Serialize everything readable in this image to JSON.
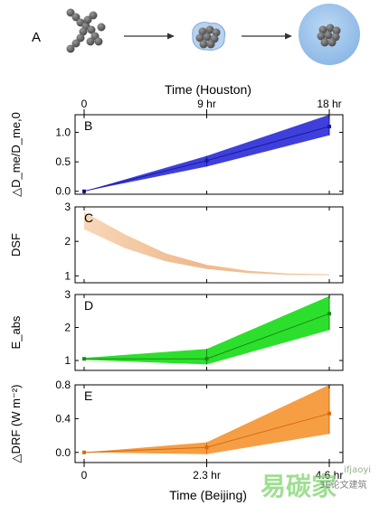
{
  "panel_a": {
    "label": "A"
  },
  "top_axis": {
    "title": "Time (Houston)",
    "ticks": [
      "0",
      "9 hr",
      "18 hr"
    ]
  },
  "bottom_axis": {
    "title": "Time (Beijing)",
    "ticks": [
      "0",
      "2.3 hr",
      "4.6 hr"
    ]
  },
  "watermark": {
    "text": "3E论文建筑",
    "brand": "易碳家",
    "brand_latin": "ifjaoyi"
  },
  "colors": {
    "blue": "#2a2ad8",
    "peach": "#f4c39a",
    "green": "#22dd22",
    "orange": "#f5942f"
  },
  "chart_data": [
    {
      "type": "area",
      "panel": "B",
      "ylabel": "△D_me/D_me,0",
      "x": [
        0,
        9,
        18
      ],
      "x_ticks": [
        "0",
        "9 hr",
        "18 hr"
      ],
      "yticks": [
        "0.0",
        "0.5",
        "1.0"
      ],
      "ylim": [
        -0.05,
        1.3
      ],
      "series": [
        {
          "values": [
            0.0,
            0.52,
            1.1
          ],
          "lower": [
            0.0,
            0.42,
            0.95
          ],
          "upper": [
            0.0,
            0.6,
            1.3
          ]
        }
      ]
    },
    {
      "type": "area",
      "panel": "C",
      "ylabel": "DSF",
      "x": [
        0,
        3,
        6,
        9,
        12,
        15,
        18
      ],
      "yticks": [
        "1",
        "2",
        "3"
      ],
      "ylim": [
        0.8,
        3.0
      ],
      "series": [
        {
          "lower": [
            2.35,
            1.8,
            1.42,
            1.2,
            1.08,
            1.03,
            1.02
          ],
          "upper": [
            2.85,
            2.2,
            1.65,
            1.32,
            1.15,
            1.07,
            1.05
          ]
        }
      ]
    },
    {
      "type": "area",
      "panel": "D",
      "ylabel": "E_abs",
      "x": [
        0,
        9,
        18
      ],
      "yticks": [
        "1",
        "2",
        "3"
      ],
      "ylim": [
        0.7,
        3.0
      ],
      "series": [
        {
          "values": [
            1.05,
            1.05,
            2.42
          ],
          "lower": [
            1.02,
            0.88,
            1.92
          ],
          "upper": [
            1.08,
            1.35,
            2.95
          ]
        }
      ]
    },
    {
      "type": "area",
      "panel": "E",
      "ylabel": "△DRF (W m⁻²)",
      "x": [
        0,
        9,
        18
      ],
      "x_ticks": [
        "0",
        "2.3 hr",
        "4.6 hr"
      ],
      "yticks": [
        "0.0",
        "0.4",
        "0.8"
      ],
      "ylim": [
        -0.12,
        0.8
      ],
      "series": [
        {
          "values": [
            0.0,
            0.06,
            0.46
          ],
          "lower": [
            0.0,
            -0.02,
            0.22
          ],
          "upper": [
            0.0,
            0.12,
            0.8
          ]
        }
      ]
    }
  ]
}
